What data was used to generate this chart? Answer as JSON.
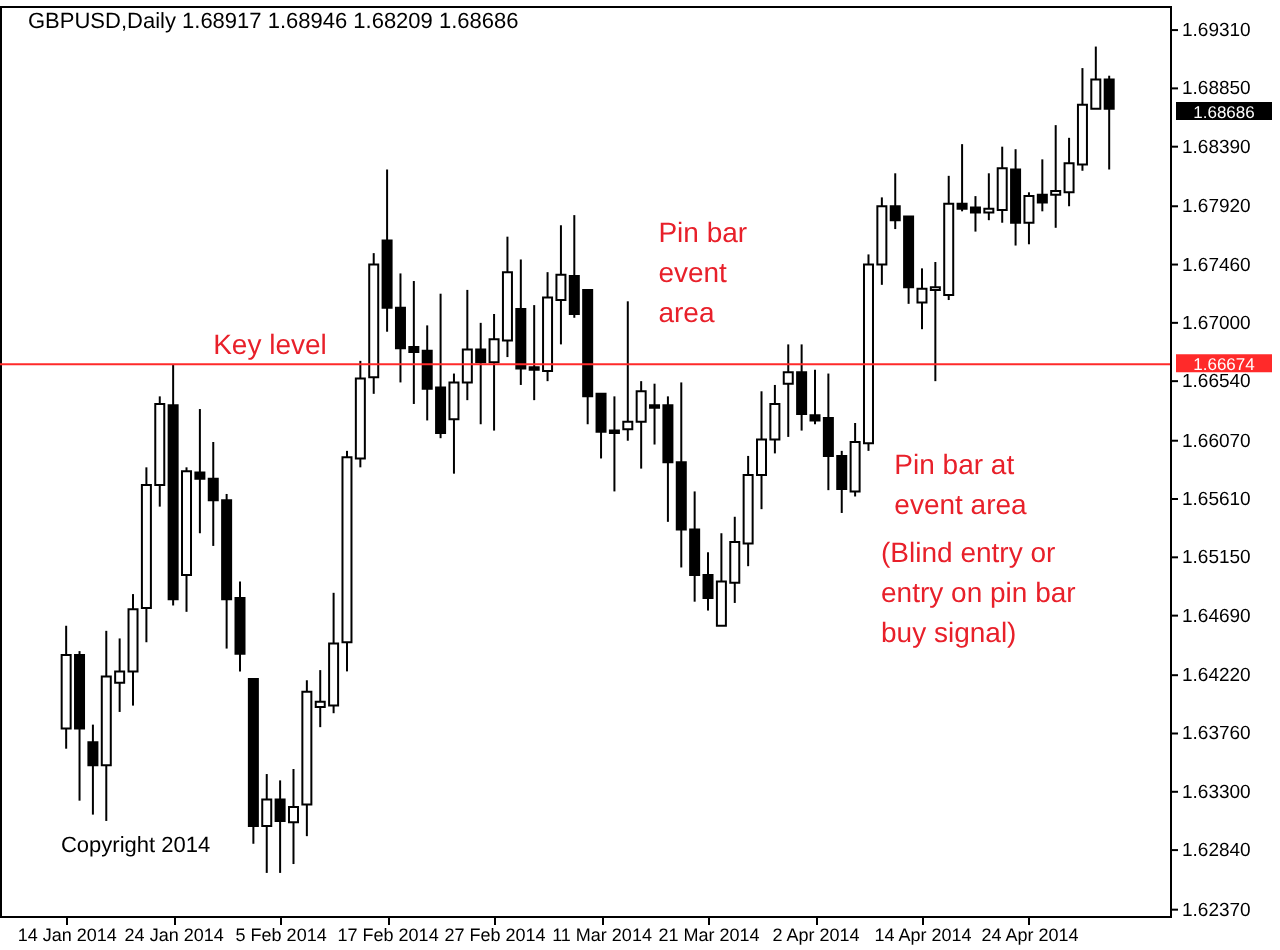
{
  "chart_data": {
    "type": "candlestick",
    "title": "GBPUSD,Daily  1.68917 1.68946 1.68209 1.68686",
    "categories": [
      "14 Jan 2014",
      null,
      null,
      null,
      null,
      null,
      null,
      null,
      "24 Jan 2014",
      null,
      null,
      null,
      null,
      null,
      null,
      null,
      "5 Feb 2014",
      null,
      null,
      null,
      null,
      null,
      null,
      null,
      "17 Feb 2014",
      null,
      null,
      null,
      null,
      null,
      null,
      null,
      "27 Feb 2014",
      null,
      null,
      null,
      null,
      null,
      null,
      null,
      "11 Mar 2014",
      null,
      null,
      null,
      null,
      null,
      null,
      null,
      "21 Mar 2014",
      null,
      null,
      null,
      null,
      null,
      null,
      null,
      "2 Apr 2014",
      null,
      null,
      null,
      null,
      null,
      null,
      null,
      "14 Apr 2014",
      null,
      null,
      null,
      null,
      null,
      null,
      null,
      "24 Apr 2014",
      null,
      null,
      null,
      null,
      null,
      null
    ],
    "ohlc": [
      [
        1.638,
        1.6461,
        1.6364,
        1.6438
      ],
      [
        1.6438,
        1.6441,
        1.6323,
        1.638
      ],
      [
        1.6369,
        1.6383,
        1.6312,
        1.6351
      ],
      [
        1.6351,
        1.6457,
        1.6307,
        1.6421
      ],
      [
        1.6416,
        1.6451,
        1.6393,
        1.6425
      ],
      [
        1.6425,
        1.6486,
        1.6398,
        1.6474
      ],
      [
        1.6475,
        1.6586,
        1.6448,
        1.6572
      ],
      [
        1.6572,
        1.6642,
        1.6555,
        1.6636
      ],
      [
        1.6635,
        1.6667,
        1.6477,
        1.6482
      ],
      [
        1.6501,
        1.6586,
        1.6472,
        1.6583
      ],
      [
        1.6582,
        1.6632,
        1.6534,
        1.6577
      ],
      [
        1.6577,
        1.6606,
        1.6524,
        1.656
      ],
      [
        1.656,
        1.6565,
        1.6443,
        1.6482
      ],
      [
        1.6483,
        1.6496,
        1.6425,
        1.6439
      ],
      [
        1.6419,
        1.6419,
        1.6289,
        1.6303
      ],
      [
        1.6303,
        1.6344,
        1.6266,
        1.6324
      ],
      [
        1.6324,
        1.6339,
        1.6266,
        1.6307
      ],
      [
        1.6306,
        1.6348,
        1.6273,
        1.6318
      ],
      [
        1.632,
        1.6418,
        1.6295,
        1.6409
      ],
      [
        1.6397,
        1.6426,
        1.6381,
        1.6401
      ],
      [
        1.6398,
        1.6487,
        1.6392,
        1.6447
      ],
      [
        1.6448,
        1.6599,
        1.6425,
        1.6594
      ],
      [
        1.6593,
        1.667,
        1.6586,
        1.6656
      ],
      [
        1.6657,
        1.6755,
        1.6644,
        1.6746
      ],
      [
        1.6765,
        1.6821,
        1.6693,
        1.6712
      ],
      [
        1.6712,
        1.6739,
        1.6653,
        1.668
      ],
      [
        1.6681,
        1.6733,
        1.6636,
        1.6677
      ],
      [
        1.6678,
        1.6698,
        1.6623,
        1.6648
      ],
      [
        1.6649,
        1.6723,
        1.6609,
        1.6613
      ],
      [
        1.6624,
        1.666,
        1.6581,
        1.6653
      ],
      [
        1.6653,
        1.6726,
        1.6639,
        1.6679
      ],
      [
        1.6679,
        1.67,
        1.662,
        1.6669
      ],
      [
        1.6669,
        1.6707,
        1.6615,
        1.6687
      ],
      [
        1.6686,
        1.6768,
        1.6673,
        1.674
      ],
      [
        1.6711,
        1.675,
        1.6651,
        1.6664
      ],
      [
        1.6665,
        1.6714,
        1.6639,
        1.6663
      ],
      [
        1.6662,
        1.674,
        1.6654,
        1.672
      ],
      [
        1.6718,
        1.6777,
        1.6683,
        1.6738
      ],
      [
        1.6737,
        1.6785,
        1.6704,
        1.6707
      ],
      [
        1.6726,
        1.6726,
        1.662,
        1.6642
      ],
      [
        1.6644,
        1.6644,
        1.6593,
        1.6614
      ],
      [
        1.6615,
        1.6642,
        1.6567,
        1.6613
      ],
      [
        1.6616,
        1.6717,
        1.6607,
        1.6622
      ],
      [
        1.6622,
        1.6654,
        1.6585,
        1.6646
      ],
      [
        1.6635,
        1.6652,
        1.6604,
        1.6633
      ],
      [
        1.6635,
        1.6642,
        1.6543,
        1.659
      ],
      [
        1.659,
        1.6653,
        1.6507,
        1.6537
      ],
      [
        1.6537,
        1.6567,
        1.648,
        1.6501
      ],
      [
        1.6501,
        1.6519,
        1.6473,
        1.6483
      ],
      [
        1.6461,
        1.6534,
        1.6461,
        1.6496
      ],
      [
        1.6495,
        1.6547,
        1.6479,
        1.6527
      ],
      [
        1.6526,
        1.6595,
        1.6508,
        1.658
      ],
      [
        1.658,
        1.6646,
        1.6553,
        1.6608
      ],
      [
        1.6608,
        1.6651,
        1.6597,
        1.6636
      ],
      [
        1.6652,
        1.6683,
        1.661,
        1.6661
      ],
      [
        1.6661,
        1.6683,
        1.6615,
        1.6628
      ],
      [
        1.6627,
        1.6663,
        1.662,
        1.6623
      ],
      [
        1.6625,
        1.666,
        1.6568,
        1.6595
      ],
      [
        1.6595,
        1.6599,
        1.655,
        1.6569
      ],
      [
        1.6567,
        1.6621,
        1.6563,
        1.6606
      ],
      [
        1.6605,
        1.6754,
        1.6599,
        1.6746
      ],
      [
        1.6746,
        1.6799,
        1.673,
        1.6792
      ],
      [
        1.6792,
        1.6818,
        1.6774,
        1.6781
      ],
      [
        1.6784,
        1.6784,
        1.6715,
        1.6728
      ],
      [
        1.6716,
        1.6743,
        1.6695,
        1.6727
      ],
      [
        1.6726,
        1.6748,
        1.6654,
        1.6728
      ],
      [
        1.6722,
        1.6816,
        1.6718,
        1.6794
      ],
      [
        1.6794,
        1.6841,
        1.6788,
        1.679
      ],
      [
        1.6791,
        1.68,
        1.6772,
        1.6787
      ],
      [
        1.6787,
        1.6818,
        1.6781,
        1.679
      ],
      [
        1.6789,
        1.6839,
        1.6779,
        1.6822
      ],
      [
        1.6821,
        1.6837,
        1.6761,
        1.6779
      ],
      [
        1.6779,
        1.6803,
        1.6762,
        1.68
      ],
      [
        1.6801,
        1.6829,
        1.6788,
        1.6795
      ],
      [
        1.6801,
        1.6856,
        1.6775,
        1.6804
      ],
      [
        1.6803,
        1.6846,
        1.6792,
        1.6826
      ],
      [
        1.6825,
        1.6901,
        1.682,
        1.6872
      ],
      [
        1.6869,
        1.6918,
        1.6869,
        1.6892
      ],
      [
        1.6892,
        1.6895,
        1.6821,
        1.6869
      ]
    ],
    "ylim": [
      1.6232,
      1.695
    ],
    "yticks": [
      {
        "value": 1.6931,
        "label": "1.69310"
      },
      {
        "value": 1.6885,
        "label": "1.68850"
      },
      {
        "value": 1.6839,
        "label": "1.68390"
      },
      {
        "value": 1.6792,
        "label": "1.67920"
      },
      {
        "value": 1.6746,
        "label": "1.67460"
      },
      {
        "value": 1.67,
        "label": "1.67000"
      },
      {
        "value": 1.6654,
        "label": "1.66540"
      },
      {
        "value": 1.6607,
        "label": "1.66070"
      },
      {
        "value": 1.6561,
        "label": "1.65610"
      },
      {
        "value": 1.6515,
        "label": "1.65150"
      },
      {
        "value": 1.6469,
        "label": "1.64690"
      },
      {
        "value": 1.6422,
        "label": "1.64220"
      },
      {
        "value": 1.6376,
        "label": "1.63760"
      },
      {
        "value": 1.633,
        "label": "1.63300"
      },
      {
        "value": 1.6284,
        "label": "1.62840"
      },
      {
        "value": 1.6237,
        "label": "1.62370"
      }
    ],
    "ref_lines": [
      {
        "axis": "y",
        "value": 1.66674,
        "label": "1.66674",
        "color": "#ff2a2a"
      }
    ],
    "annotations": [
      "Key level",
      "Pin bar\nevent\narea",
      "Pin bar at\nevent area",
      "(Blind entry or\nentry on pin bar\nbuy signal)",
      "Copyright 2014",
      "1.68686"
    ],
    "grid": false
  }
}
